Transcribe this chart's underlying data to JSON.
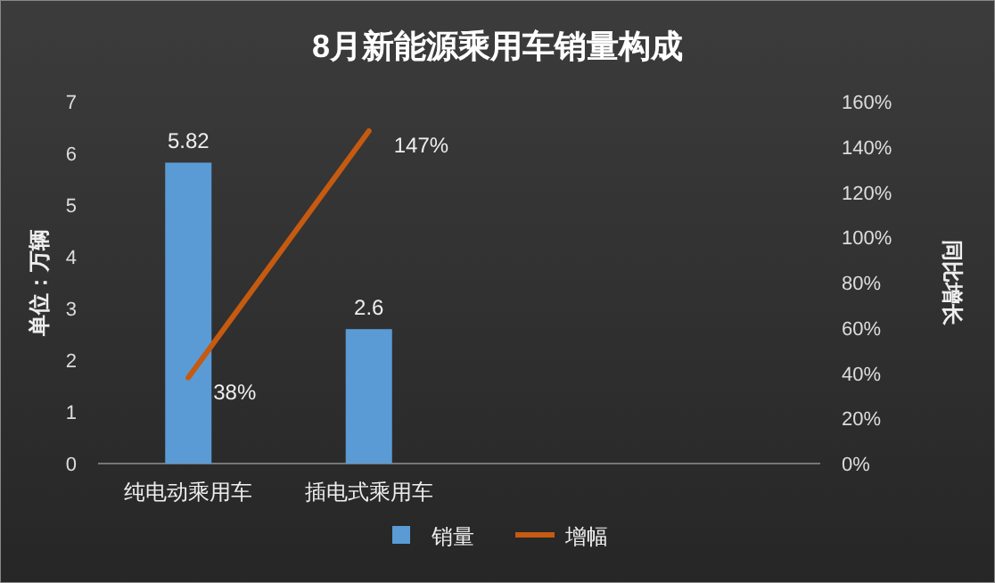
{
  "chart_data": {
    "type": "bar",
    "title": "8月新能源乘用车销量构成",
    "ylabel": "单位：万辆",
    "y2label": "同比增长",
    "categories": [
      "纯电动乘用车",
      "插电式乘用车",
      null,
      null
    ],
    "series": [
      {
        "name": "销量",
        "color": "#5b9bd5",
        "values": [
          5.82,
          2.6,
          null,
          null
        ],
        "value_labels": [
          "5.82",
          "2.6",
          null,
          null
        ]
      },
      {
        "name": "增幅",
        "type": "line",
        "axis": "y2",
        "color": "#c55a11",
        "values": [
          38,
          147,
          null,
          null
        ],
        "value_labels": [
          "38%",
          "147%",
          null,
          null
        ]
      }
    ],
    "ylim": [
      0,
      7
    ],
    "yticks": [
      0,
      1,
      2,
      3,
      4,
      5,
      6,
      7
    ],
    "y2lim": [
      0,
      160
    ],
    "y2ticks": [
      {
        "value": 0,
        "label": "0%"
      },
      {
        "value": 20,
        "label": "20%"
      },
      {
        "value": 40,
        "label": "40%"
      },
      {
        "value": 60,
        "label": "60%"
      },
      {
        "value": 80,
        "label": "80%"
      },
      {
        "value": 100,
        "label": "100%"
      },
      {
        "value": 120,
        "label": "120%"
      },
      {
        "value": 140,
        "label": "140%"
      },
      {
        "value": 160,
        "label": "160%"
      }
    ],
    "legend": "bottom",
    "marker": "none",
    "line_style": "solid",
    "grid": false
  }
}
